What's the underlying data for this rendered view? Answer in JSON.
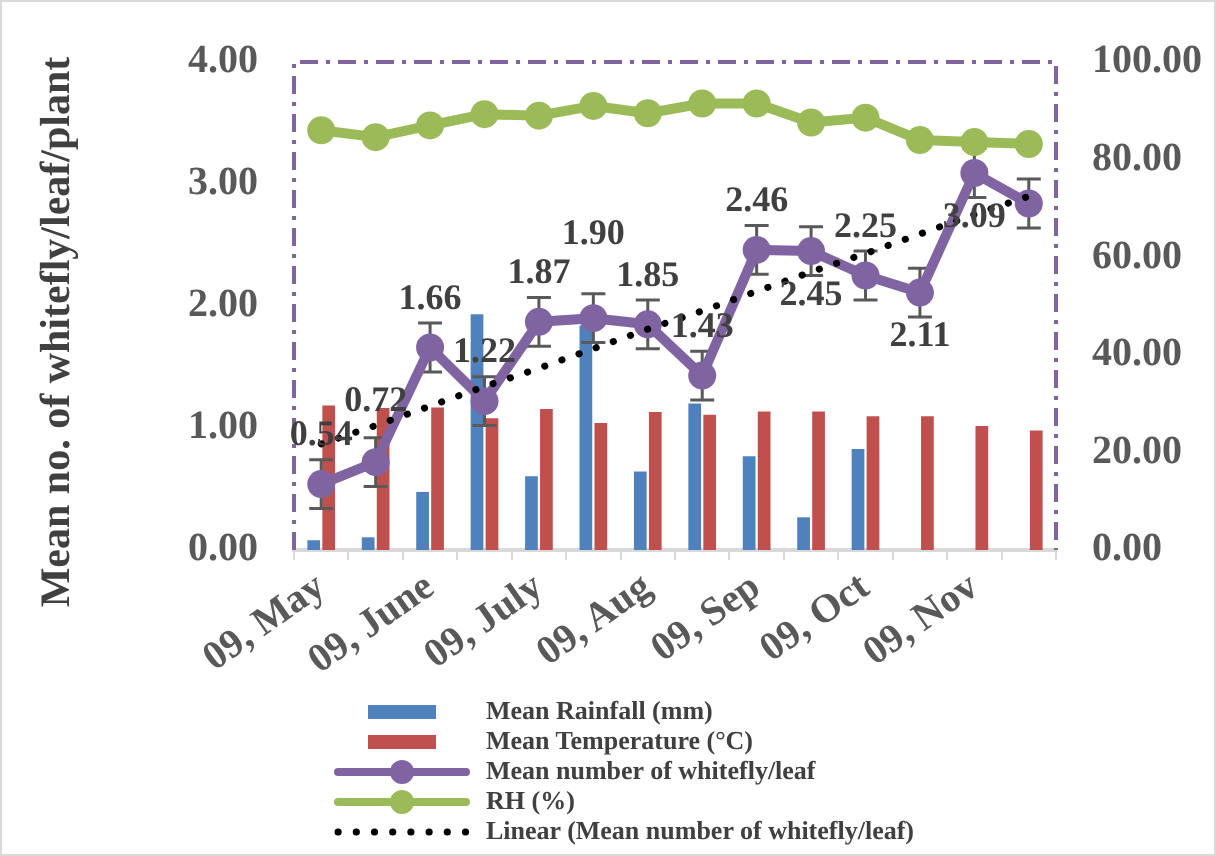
{
  "chart_data": {
    "type": "bar",
    "ylabel": "Mean no. of whitefly/leaf/plant",
    "categories": [
      "09, May",
      null,
      "09, June",
      null,
      "09, July",
      null,
      "09, Aug",
      null,
      "09, Sep",
      null,
      "09, Oct",
      null,
      "09, Nov",
      null
    ],
    "series": [
      {
        "name": "Mean Rainfall (mm)",
        "axis": "y2",
        "color": "#4f81bd",
        "values": [
          2.0,
          2.6,
          11.9,
          48.3,
          15.1,
          46,
          16.1,
          30.0,
          19.2,
          6.7,
          20.7,
          null,
          null,
          null
        ]
      },
      {
        "name": "Mean Temperature (°C)",
        "axis": "y2",
        "color": "#c0504d",
        "values": [
          29.6,
          29.1,
          29.2,
          27.0,
          28.9,
          26.0,
          28.3,
          27.7,
          28.4,
          28.4,
          27.4,
          27.4,
          25.4,
          24.5
        ]
      },
      {
        "name": "Mean number of whitefly/leaf",
        "type": "line",
        "color": "#8064a2",
        "marker": "circle",
        "values": [
          0.54,
          0.72,
          1.66,
          1.22,
          1.87,
          1.9,
          1.85,
          1.43,
          2.46,
          2.45,
          2.25,
          2.11,
          3.09,
          2.84
        ],
        "errors": [
          0.2,
          0.2,
          0.2,
          0.2,
          0.2,
          0.2,
          0.2,
          0.2,
          0.2,
          0.2,
          0.2,
          0.2,
          0.2,
          0.2
        ],
        "value_labels": [
          "0.54",
          "0.72",
          "1.66",
          "1.22",
          "1.87",
          "1.90",
          "1.85",
          "1.43",
          "2.46",
          "2.45",
          "2.25",
          "2.11",
          "3.09",
          null
        ]
      },
      {
        "name": "RH (%)",
        "type": "line",
        "axis": "y2",
        "color": "#9bbb59",
        "marker": "circle",
        "values": [
          86.0,
          84.6,
          87.0,
          89.3,
          89.0,
          91.0,
          89.5,
          91.5,
          91.5,
          87.6,
          88.6,
          84.0,
          83.6,
          83.2
        ]
      },
      {
        "name": "Linear (Mean number of whitefly/leaf)",
        "type": "line",
        "color": "#000000",
        "marker": "none",
        "line_style": "dotted",
        "values": [
          0.87,
          1.02,
          1.18,
          1.34,
          1.49,
          1.65,
          1.81,
          1.96,
          2.12,
          2.28,
          2.43,
          2.59,
          2.75,
          2.9
        ]
      }
    ],
    "ylim": [
      0,
      4
    ],
    "yticks": [
      {
        "value": 0,
        "label": "0.00"
      },
      {
        "value": 1,
        "label": "1.00"
      },
      {
        "value": 2,
        "label": "2.00"
      },
      {
        "value": 3,
        "label": "3.00"
      },
      {
        "value": 4,
        "label": "4.00"
      }
    ],
    "y2lim": [
      0,
      100
    ],
    "y2ticks": [
      {
        "value": 0,
        "label": "0.00"
      },
      {
        "value": 20,
        "label": "20.00"
      },
      {
        "value": 40,
        "label": "40.00"
      },
      {
        "value": 60,
        "label": "60.00"
      },
      {
        "value": 80,
        "label": "80.00"
      },
      {
        "value": 100,
        "label": "100.00"
      }
    ],
    "legend": "bottom",
    "grid": false
  }
}
